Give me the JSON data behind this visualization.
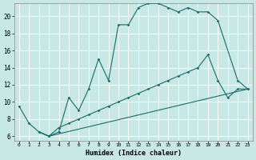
{
  "xlabel": "Humidex (Indice chaleur)",
  "xlim": [
    -0.5,
    23.5
  ],
  "ylim": [
    5.5,
    21.5
  ],
  "xticks": [
    0,
    1,
    2,
    3,
    4,
    5,
    6,
    7,
    8,
    9,
    10,
    11,
    12,
    13,
    14,
    15,
    16,
    17,
    18,
    19,
    20,
    21,
    22,
    23
  ],
  "yticks": [
    6,
    8,
    10,
    12,
    14,
    16,
    18,
    20
  ],
  "bg_color": "#c8e8e5",
  "line_color": "#1a6b6b",
  "grid_color": "#b0d0d0",
  "grid_color2": "#ffffff",
  "line1_x": [
    0,
    1,
    2,
    3,
    4,
    5,
    6,
    7,
    8,
    9,
    10,
    11,
    12,
    13,
    14,
    15,
    16,
    17,
    18,
    19,
    20,
    22,
    23
  ],
  "line1_y": [
    9.5,
    7.5,
    6.5,
    6.0,
    6.5,
    10.5,
    9.0,
    11.5,
    15.0,
    12.5,
    19.0,
    19.0,
    21.0,
    21.5,
    21.5,
    21.0,
    20.5,
    21.0,
    20.5,
    20.5,
    19.5,
    12.5,
    11.5
  ],
  "line2_x": [
    2,
    3,
    4,
    5,
    6,
    7,
    8,
    9,
    10,
    11,
    12,
    13,
    14,
    15,
    16,
    17,
    18,
    19,
    20,
    21,
    22,
    23
  ],
  "line2_y": [
    6.5,
    6.0,
    7.0,
    7.5,
    8.0,
    8.5,
    9.0,
    9.5,
    10.0,
    10.5,
    11.0,
    11.5,
    12.0,
    12.5,
    13.0,
    13.5,
    14.0,
    15.5,
    12.5,
    10.5,
    11.5,
    11.5
  ],
  "line3_x": [
    2,
    3,
    23
  ],
  "line3_y": [
    6.5,
    6.0,
    11.5
  ]
}
